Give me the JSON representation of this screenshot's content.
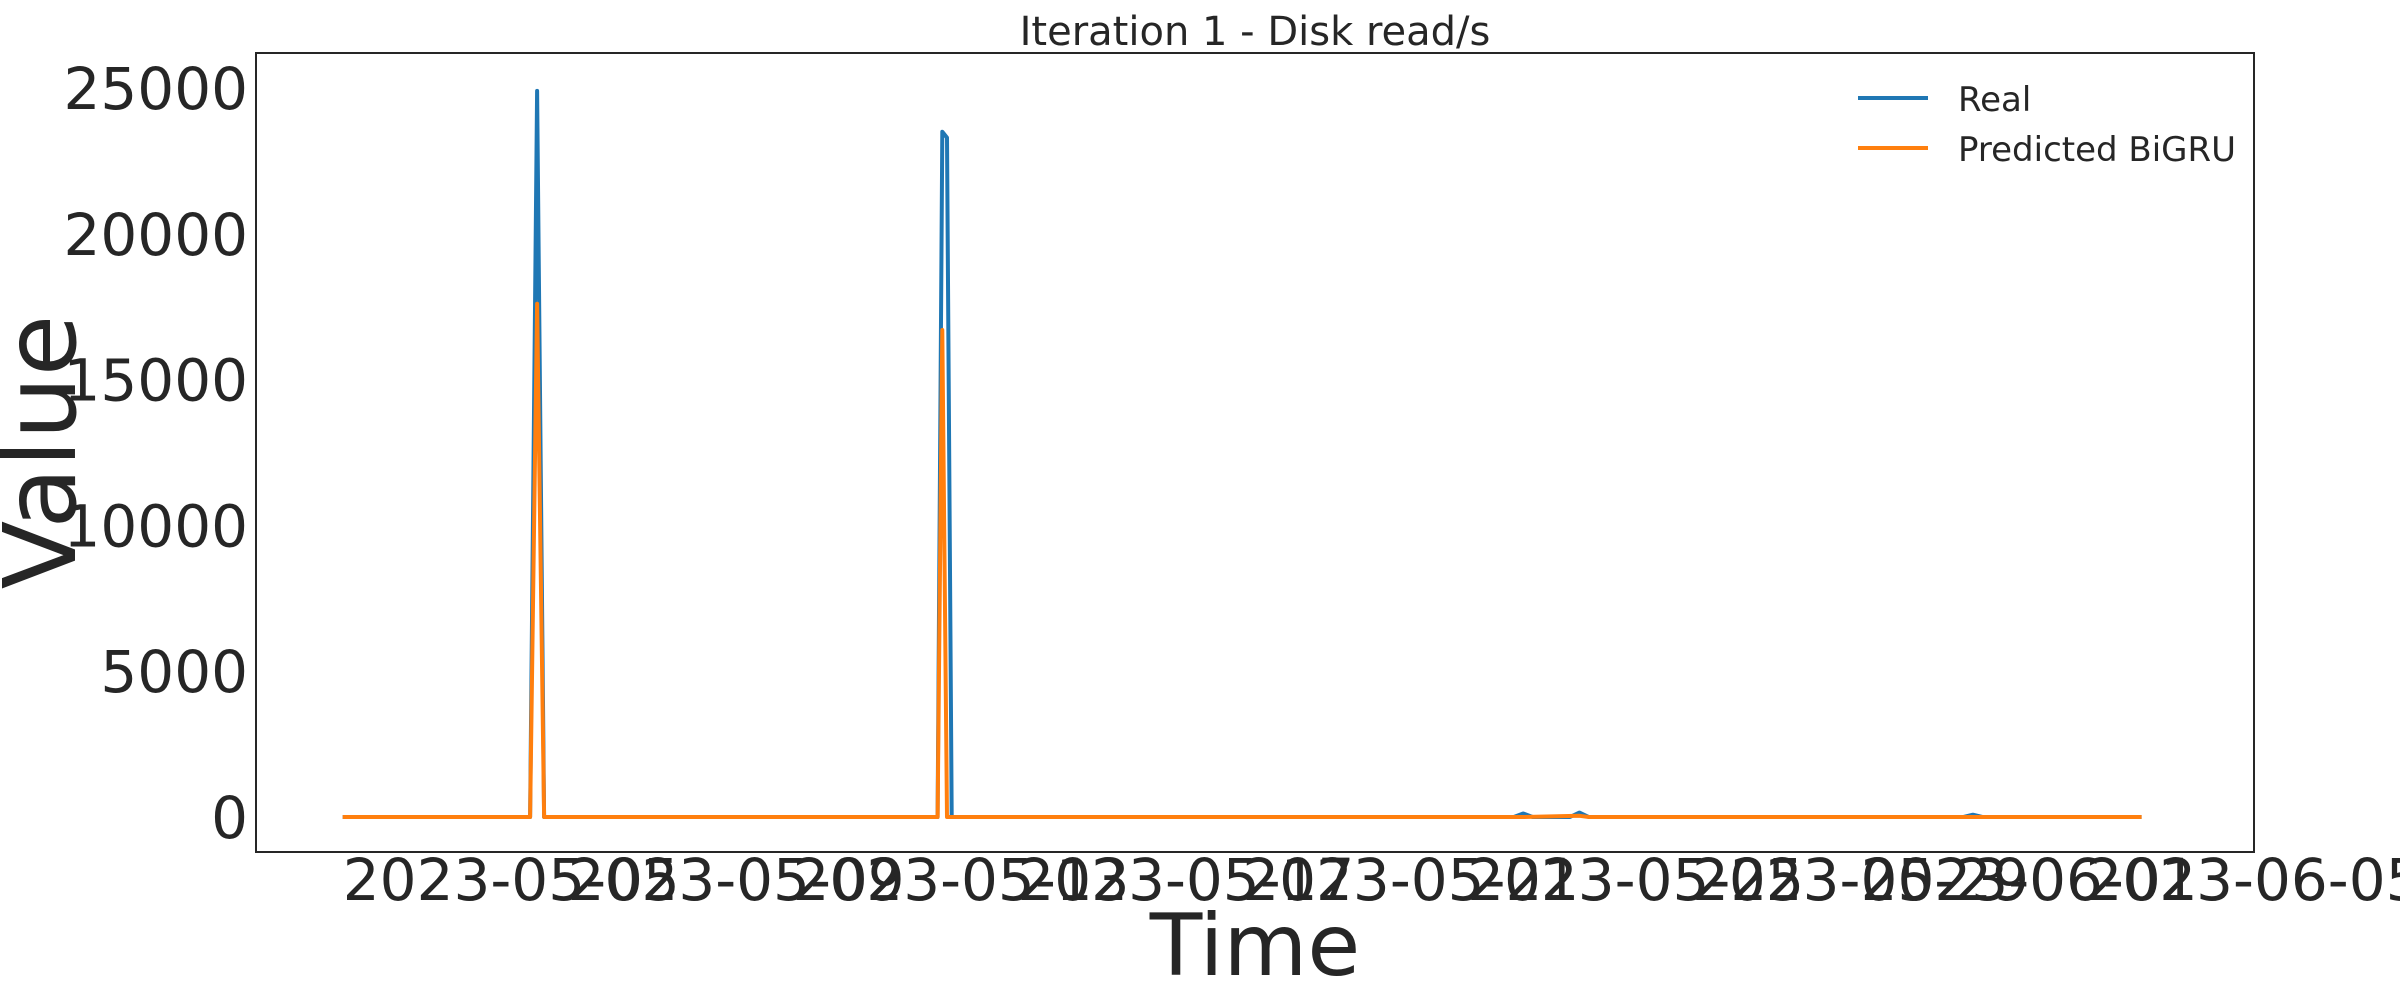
{
  "chart_data": {
    "type": "line",
    "title": "Iteration 1 - Disk read/s",
    "xlabel": "Time",
    "ylabel": "Value",
    "xlim": [
      "2023-04-30T11:00",
      "2023-06-05T00:00"
    ],
    "ylim": [
      -1200,
      26200
    ],
    "x_ticks": [
      "2023-05-05",
      "2023-05-09",
      "2023-05-13",
      "2023-05-17",
      "2023-05-21",
      "2023-05-25",
      "2023-05-29",
      "2023-06-01",
      "2023-06-05"
    ],
    "y_ticks": [
      0,
      5000,
      10000,
      15000,
      20000,
      25000
    ],
    "grid": false,
    "legend_position": "top-right",
    "series": [
      {
        "name": "Real",
        "color": "#1f77b4",
        "points": [
          [
            "2023-05-02T00:00",
            0
          ],
          [
            "2023-05-04T12:00",
            0
          ],
          [
            "2023-05-05T08:00",
            0
          ],
          [
            "2023-05-05T11:00",
            24900
          ],
          [
            "2023-05-05T14:00",
            0
          ],
          [
            "2023-05-12T14:00",
            0
          ],
          [
            "2023-05-12T16:00",
            23500
          ],
          [
            "2023-05-12T18:00",
            23300
          ],
          [
            "2023-05-12T20:00",
            0
          ],
          [
            "2023-05-22T20:00",
            0
          ],
          [
            "2023-05-23T00:00",
            120
          ],
          [
            "2023-05-23T04:00",
            0
          ],
          [
            "2023-05-23T20:00",
            0
          ],
          [
            "2023-05-24T00:00",
            150
          ],
          [
            "2023-05-24T04:00",
            0
          ],
          [
            "2023-05-30T20:00",
            0
          ],
          [
            "2023-05-31T00:00",
            80
          ],
          [
            "2023-05-31T04:00",
            0
          ],
          [
            "2023-06-03T00:00",
            0
          ]
        ]
      },
      {
        "name": "Predicted BiGRU",
        "color": "#ff7f0e",
        "points": [
          [
            "2023-05-02T00:00",
            0
          ],
          [
            "2023-05-04T12:00",
            0
          ],
          [
            "2023-05-05T08:00",
            0
          ],
          [
            "2023-05-05T11:00",
            17600
          ],
          [
            "2023-05-05T14:00",
            0
          ],
          [
            "2023-05-12T14:00",
            0
          ],
          [
            "2023-05-12T16:00",
            16700
          ],
          [
            "2023-05-12T18:00",
            0
          ],
          [
            "2023-05-23T00:00",
            0
          ],
          [
            "2023-05-24T00:00",
            40
          ],
          [
            "2023-05-24T04:00",
            0
          ],
          [
            "2023-06-03T00:00",
            0
          ]
        ]
      }
    ]
  }
}
